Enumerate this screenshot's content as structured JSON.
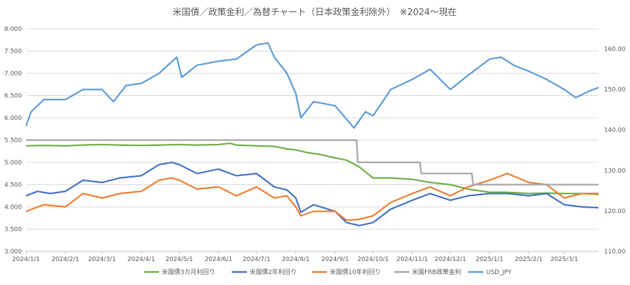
{
  "chart_data": {
    "type": "line",
    "title": "米国債／政策金利／為替チャート（日本政策金利除外）　※2024～現在",
    "y_left": {
      "min": 3.0,
      "max": 8.0,
      "step": 0.5,
      "ticks": [
        "3.000",
        "3.500",
        "4.000",
        "4.500",
        "5.000",
        "5.500",
        "6.000",
        "6.500",
        "7.000",
        "7.500",
        "8.000"
      ]
    },
    "y_right": {
      "min": 110,
      "max": 165,
      "step": 10,
      "ticks": [
        "110.00",
        "120.00",
        "130.00",
        "140.00",
        "150.00",
        "160.00"
      ]
    },
    "x_range": [
      "2024-01-01",
      "2025-03-28"
    ],
    "x_ticks": [
      {
        "date": "2024-01-01",
        "label": "2024/1/1"
      },
      {
        "date": "2024-02-01",
        "label": "2024/2/1"
      },
      {
        "date": "2024-03-01",
        "label": "2024/3/1"
      },
      {
        "date": "2024-04-01",
        "label": "2024/4/1"
      },
      {
        "date": "2024-05-01",
        "label": "2024/5/1"
      },
      {
        "date": "2024-06-01",
        "label": "2024/6/1"
      },
      {
        "date": "2024-07-01",
        "label": "2024/7/1"
      },
      {
        "date": "2024-08-01",
        "label": "2024/8/1"
      },
      {
        "date": "2024-09-01",
        "label": "2024/9/1"
      },
      {
        "date": "2024-10-01",
        "label": "2024/10/1"
      },
      {
        "date": "2024-11-01",
        "label": "2024/11/1"
      },
      {
        "date": "2024-12-01",
        "label": "2024/12/1"
      },
      {
        "date": "2025-01-01",
        "label": "2025/1/1"
      },
      {
        "date": "2025-02-01",
        "label": "2025/2/1"
      },
      {
        "date": "2025-03-01",
        "label": "2025/3/1"
      }
    ],
    "grid": "horizontal",
    "legend_position": "bottom",
    "series": [
      {
        "name": "米国債3カ月利回り",
        "axis": "left",
        "color": "#70ad47",
        "x": [
          "2024-01-01",
          "2024-01-15",
          "2024-02-01",
          "2024-02-15",
          "2024-03-01",
          "2024-03-15",
          "2024-04-01",
          "2024-04-15",
          "2024-05-01",
          "2024-05-15",
          "2024-06-01",
          "2024-06-10",
          "2024-06-15",
          "2024-07-01",
          "2024-07-15",
          "2024-07-25",
          "2024-08-01",
          "2024-08-10",
          "2024-08-20",
          "2024-09-01",
          "2024-09-10",
          "2024-09-20",
          "2024-10-01",
          "2024-10-15",
          "2024-11-01",
          "2024-11-15",
          "2024-12-01",
          "2024-12-15",
          "2025-01-01",
          "2025-01-15",
          "2025-02-01",
          "2025-02-15",
          "2025-03-01",
          "2025-03-15",
          "2025-03-28"
        ],
        "y": [
          5.37,
          5.38,
          5.37,
          5.39,
          5.4,
          5.39,
          5.38,
          5.39,
          5.4,
          5.39,
          5.4,
          5.43,
          5.39,
          5.37,
          5.36,
          5.3,
          5.28,
          5.22,
          5.18,
          5.1,
          5.05,
          4.9,
          4.65,
          4.65,
          4.62,
          4.55,
          4.5,
          4.4,
          4.33,
          4.33,
          4.3,
          4.31,
          4.3,
          4.3,
          4.28
        ]
      },
      {
        "name": "米国債2年利回り",
        "axis": "left",
        "color": "#4472c4",
        "x": [
          "2024-01-01",
          "2024-01-10",
          "2024-01-20",
          "2024-02-01",
          "2024-02-15",
          "2024-03-01",
          "2024-03-15",
          "2024-04-01",
          "2024-04-15",
          "2024-04-25",
          "2024-05-01",
          "2024-05-15",
          "2024-06-01",
          "2024-06-15",
          "2024-07-01",
          "2024-07-15",
          "2024-07-25",
          "2024-08-01",
          "2024-08-05",
          "2024-08-15",
          "2024-09-01",
          "2024-09-10",
          "2024-09-20",
          "2024-10-01",
          "2024-10-15",
          "2024-11-01",
          "2024-11-15",
          "2024-12-01",
          "2024-12-15",
          "2025-01-01",
          "2025-01-15",
          "2025-02-01",
          "2025-02-15",
          "2025-03-01",
          "2025-03-15",
          "2025-03-28"
        ],
        "y": [
          4.25,
          4.35,
          4.3,
          4.35,
          4.6,
          4.55,
          4.65,
          4.7,
          4.95,
          5.0,
          4.95,
          4.75,
          4.85,
          4.7,
          4.75,
          4.45,
          4.38,
          4.2,
          3.88,
          4.05,
          3.9,
          3.65,
          3.58,
          3.65,
          3.95,
          4.15,
          4.3,
          4.15,
          4.25,
          4.3,
          4.3,
          4.25,
          4.3,
          4.05,
          4.0,
          3.98
        ]
      },
      {
        "name": "米国債10年利回り",
        "axis": "left",
        "color": "#ed7d31",
        "x": [
          "2024-01-01",
          "2024-01-15",
          "2024-02-01",
          "2024-02-15",
          "2024-03-01",
          "2024-03-15",
          "2024-04-01",
          "2024-04-15",
          "2024-04-25",
          "2024-05-01",
          "2024-05-15",
          "2024-06-01",
          "2024-06-15",
          "2024-07-01",
          "2024-07-15",
          "2024-07-25",
          "2024-08-01",
          "2024-08-05",
          "2024-08-15",
          "2024-09-01",
          "2024-09-10",
          "2024-09-20",
          "2024-10-01",
          "2024-10-15",
          "2024-11-01",
          "2024-11-15",
          "2024-12-01",
          "2024-12-15",
          "2025-01-01",
          "2025-01-15",
          "2025-02-01",
          "2025-02-15",
          "2025-03-01",
          "2025-03-15",
          "2025-03-28"
        ],
        "y": [
          3.9,
          4.05,
          4.0,
          4.3,
          4.2,
          4.3,
          4.35,
          4.6,
          4.65,
          4.6,
          4.4,
          4.45,
          4.25,
          4.45,
          4.2,
          4.25,
          4.0,
          3.8,
          3.9,
          3.9,
          3.7,
          3.72,
          3.8,
          4.1,
          4.3,
          4.45,
          4.25,
          4.45,
          4.6,
          4.75,
          4.55,
          4.5,
          4.2,
          4.3,
          4.3
        ]
      },
      {
        "name": "米国FRB政策金利",
        "axis": "left",
        "color": "#a5a5a5",
        "x": [
          "2024-01-01",
          "2024-09-18",
          "2024-09-19",
          "2024-11-07",
          "2024-11-08",
          "2024-12-18",
          "2024-12-19",
          "2025-03-28"
        ],
        "y": [
          5.5,
          5.5,
          5.0,
          5.0,
          4.75,
          4.75,
          4.5,
          4.5
        ]
      },
      {
        "name": "USD_JPY",
        "axis": "right",
        "color": "#5b9bd5",
        "x": [
          "2024-01-01",
          "2024-01-05",
          "2024-01-15",
          "2024-02-01",
          "2024-02-15",
          "2024-03-01",
          "2024-03-10",
          "2024-03-20",
          "2024-04-01",
          "2024-04-15",
          "2024-04-29",
          "2024-05-03",
          "2024-05-15",
          "2024-06-01",
          "2024-06-15",
          "2024-07-01",
          "2024-07-10",
          "2024-07-15",
          "2024-07-25",
          "2024-08-01",
          "2024-08-05",
          "2024-08-15",
          "2024-09-01",
          "2024-09-16",
          "2024-09-25",
          "2024-10-01",
          "2024-10-15",
          "2024-11-01",
          "2024-11-15",
          "2024-12-01",
          "2024-12-15",
          "2025-01-01",
          "2025-01-10",
          "2025-01-20",
          "2025-02-01",
          "2025-02-15",
          "2025-03-01",
          "2025-03-10",
          "2025-03-20",
          "2025-03-28"
        ],
        "y": [
          141.0,
          144.5,
          147.5,
          147.5,
          150.0,
          150.0,
          147.0,
          151.0,
          151.5,
          154.0,
          158.0,
          153.0,
          156.0,
          157.0,
          157.5,
          161.0,
          161.5,
          158.0,
          154.0,
          149.0,
          143.0,
          147.0,
          146.0,
          140.5,
          144.5,
          143.5,
          150.0,
          152.5,
          155.0,
          150.0,
          153.5,
          157.5,
          158.0,
          156.0,
          154.5,
          152.5,
          150.0,
          148.0,
          149.5,
          150.5
        ]
      }
    ]
  }
}
